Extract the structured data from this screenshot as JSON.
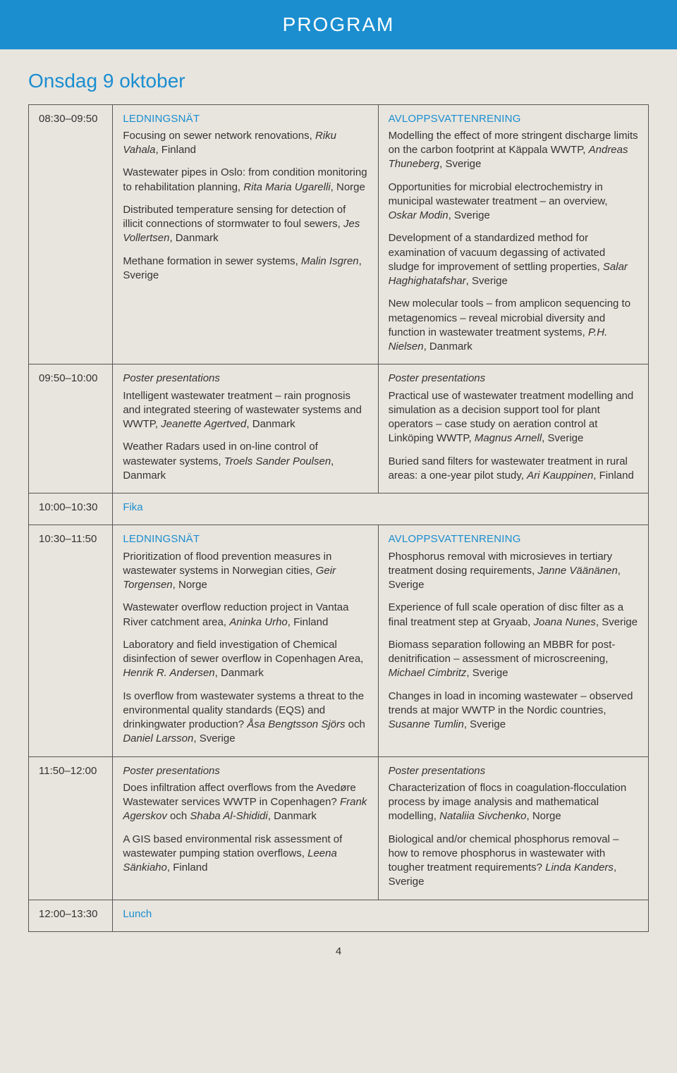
{
  "colors": {
    "brand_blue": "#1b8ed0",
    "page_bg": "#e8e5de",
    "text": "#333333",
    "rule": "#555555"
  },
  "typography": {
    "body_family": "Arial, Helvetica, sans-serif",
    "body_size_pt": 11,
    "header_size_pt": 21,
    "day_title_size_pt": 21
  },
  "header": {
    "title": "PROGRAM"
  },
  "day": {
    "title": "Onsdag 9 oktober"
  },
  "page_number": "4",
  "rows": [
    {
      "time": "08:30–09:50",
      "left": {
        "track": "LEDNINGSNÄT",
        "items": [
          {
            "text": "Focusing on sewer network renovations, ",
            "suffix_em": "Riku Vahala",
            "suffix_plain": ", Finland"
          },
          {
            "text": "Wastewater pipes in Oslo: from condition monitoring to rehabilitation planning, ",
            "suffix_em": "Rita Maria Ugarelli",
            "suffix_plain": ", Norge"
          },
          {
            "text": "Distributed temperature sensing for detection of illicit connections of stormwater to foul sewers, ",
            "suffix_em": "Jes Vollertsen",
            "suffix_plain": ", Danmark"
          },
          {
            "text": "Methane formation in sewer systems, ",
            "suffix_em": "Malin Isgren",
            "suffix_plain": ", Sverige"
          }
        ]
      },
      "right": {
        "track": "AVLOPPSVATTENRENING",
        "items": [
          {
            "text": "Modelling the effect of more stringent discharge limits on the carbon footprint at Käppala WWTP, ",
            "suffix_em": "Andreas Thuneberg",
            "suffix_plain": ", Sverige"
          },
          {
            "text": "Opportunities for microbial electrochemistry in municipal wastewater treatment – an overview, ",
            "suffix_em": "Oskar Modin",
            "suffix_plain": ", Sverige"
          },
          {
            "text": "Development of a standardized method for examination of vacuum degassing of activated sludge for improvement of settling properties, ",
            "suffix_em": "Salar Haghighatafshar",
            "suffix_plain": ", Sverige"
          },
          {
            "text": "New molecular tools – from amplicon sequencing to metagenomics – reveal microbial diversity and function in wastewater treatment systems, ",
            "suffix_em": "P.H. Nielsen",
            "suffix_plain": ", Danmark"
          }
        ]
      }
    },
    {
      "time": "09:50–10:00",
      "left": {
        "poster": "Poster presentations",
        "items": [
          {
            "text": "Intelligent wastewater treatment – rain prognosis and integrated steering of wastewater systems and WWTP, ",
            "suffix_em": "Jeanette Agertved",
            "suffix_plain": ", Danmark"
          },
          {
            "text": "Weather Radars used in on-line control of wastewater systems, ",
            "suffix_em": "Troels Sander Poulsen",
            "suffix_plain": ", Danmark"
          }
        ]
      },
      "right": {
        "poster": "Poster presentations",
        "items": [
          {
            "text": "Practical use of wastewater treatment modelling and simulation as a decision support tool for plant operators – case study on aeration control at Linköping WWTP, ",
            "suffix_em": "Magnus Arnell",
            "suffix_plain": ", Sverige"
          },
          {
            "text": "Buried sand filters for wastewater treatment in rural areas: a one-year pilot study, ",
            "suffix_em": "Ari Kauppinen",
            "suffix_plain": ", Finland"
          }
        ]
      }
    },
    {
      "time": "10:00–10:30",
      "break": "Fika"
    },
    {
      "time": "10:30–11:50",
      "left": {
        "track": "LEDNINGSNÄT",
        "items": [
          {
            "text": "Prioritization of flood prevention measures in wastewater systems in Norwegian cities, ",
            "suffix_em": "Geir Torgensen",
            "suffix_plain": ", Norge"
          },
          {
            "text": "Wastewater overflow reduction project in Vantaa River catchment area, ",
            "suffix_em": "Aninka Urho",
            "suffix_plain": ", Finland"
          },
          {
            "text": "Laboratory and field investigation of Chemical disinfection of sewer overflow in Copenhagen Area, ",
            "suffix_em": "Henrik R. Andersen",
            "suffix_plain": ", Danmark"
          },
          {
            "text": "Is overflow from wastewater systems a threat to the environmental quality standards (EQS) and drinkingwater production? ",
            "suffix_em": "Åsa Bengtsson Sjörs",
            "mid_plain": " och ",
            "suffix_em2": "Daniel Larsson",
            "suffix_plain": ", Sverige"
          }
        ]
      },
      "right": {
        "track": "AVLOPPSVATTENRENING",
        "items": [
          {
            "text": "Phosphorus removal with microsieves in tertiary treatment dosing requirements, ",
            "suffix_em": "Janne Väänänen",
            "suffix_plain": ", Sverige"
          },
          {
            "text": "Experience of full scale operation of disc filter as a final treatment step at Gryaab, ",
            "suffix_em": "Joana Nunes",
            "suffix_plain": ", Sverige"
          },
          {
            "text": "Biomass separation following an MBBR for post-denitrification – assessment of microscreening, ",
            "suffix_em": "Michael Cimbritz",
            "suffix_plain": ", Sverige"
          },
          {
            "text": "Changes in load in incoming wastewater – observed trends at major WWTP in the Nordic countries, ",
            "suffix_em": "Susanne Tumlin",
            "suffix_plain": ", Sverige"
          }
        ]
      }
    },
    {
      "time": "11:50–12:00",
      "left": {
        "poster": "Poster presentations",
        "items": [
          {
            "text": "Does infiltration affect overflows from the Avedøre Wastewater services WWTP in Copenhagen? ",
            "suffix_em": "Frank Agerskov",
            "mid_plain": " och ",
            "suffix_em2": "Shaba Al-Shididi",
            "suffix_plain": ", Danmark"
          },
          {
            "text": "A GIS based environmental risk assessment of wastewater pumping station overflows, ",
            "suffix_em": "Leena Sänkiaho",
            "suffix_plain": ", Finland"
          }
        ]
      },
      "right": {
        "poster": "Poster presentations",
        "items": [
          {
            "text": "Characterization of flocs in coagulation-flocculation process by image analysis and mathematical modelling, ",
            "suffix_em": "Nataliia Sivchenko",
            "suffix_plain": ", Norge"
          },
          {
            "text": "Biological and/or chemical phosphorus removal – how to remove phosphorus in wastewater with tougher treatment requirements? ",
            "suffix_em": "Linda Kanders",
            "suffix_plain": ", Sverige"
          }
        ]
      }
    },
    {
      "time": "12:00–13:30",
      "break": "Lunch"
    }
  ]
}
